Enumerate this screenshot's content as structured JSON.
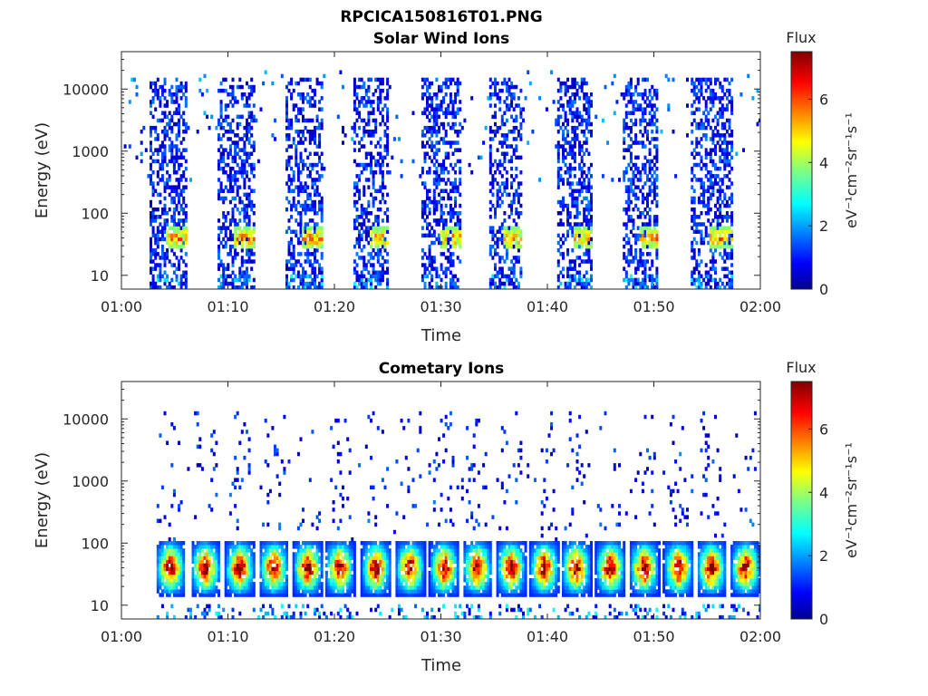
{
  "figure_title": "RPCICA150816T01.PNG",
  "chart_data": [
    {
      "type": "heatmap",
      "title": "Solar Wind Ions",
      "xlabel": "Time",
      "ylabel": "Energy (eV)",
      "x_ticks": [
        "01:00",
        "01:10",
        "01:20",
        "01:30",
        "01:40",
        "01:50",
        "02:00"
      ],
      "xlim": [
        "01:00",
        "02:00"
      ],
      "y_scale": "log",
      "y_ticks": [
        "10",
        "100",
        "1000",
        "10000"
      ],
      "ylim": [
        6,
        40000
      ],
      "colorbar": {
        "title": "Flux",
        "label": "eV⁻¹cm⁻²sr⁻¹s⁻¹",
        "range": [
          0,
          7.5
        ],
        "ticks": [
          "0",
          "2",
          "4",
          "6"
        ],
        "colormap": "jet"
      },
      "sweep_intervals_min": [
        [
          2.6,
          6.0
        ],
        [
          8.9,
          12.4
        ],
        [
          15.2,
          18.8
        ],
        [
          21.7,
          25.0
        ],
        [
          28.0,
          31.8
        ],
        [
          34.4,
          37.6
        ],
        [
          40.7,
          44.2
        ],
        [
          47.0,
          50.2
        ],
        [
          53.4,
          57.2
        ]
      ],
      "peak": {
        "energy_eV": 40,
        "flux_max": 5.5
      }
    },
    {
      "type": "heatmap",
      "title": "Cometary Ions",
      "xlabel": "Time",
      "ylabel": "Energy (eV)",
      "x_ticks": [
        "01:00",
        "01:10",
        "01:20",
        "01:30",
        "01:40",
        "01:50",
        "02:00"
      ],
      "xlim": [
        "01:00",
        "02:00"
      ],
      "y_scale": "log",
      "y_ticks": [
        "10",
        "100",
        "1000",
        "10000"
      ],
      "ylim": [
        6,
        40000
      ],
      "colorbar": {
        "title": "Flux",
        "label": "eV⁻¹cm⁻²sr⁻¹s⁻¹",
        "range": [
          0,
          7.5
        ],
        "ticks": [
          "0",
          "2",
          "4",
          "6"
        ],
        "colormap": "jet"
      },
      "blob_centers_min": [
        4.5,
        7.8,
        11.0,
        14.2,
        17.4,
        20.4,
        23.8,
        27.0,
        30.2,
        33.3,
        36.5,
        39.6,
        42.6,
        45.8,
        49.0,
        52.2,
        55.3,
        58.5
      ],
      "peak": {
        "energy_eV": 40,
        "flux_max": 7.3
      }
    }
  ]
}
